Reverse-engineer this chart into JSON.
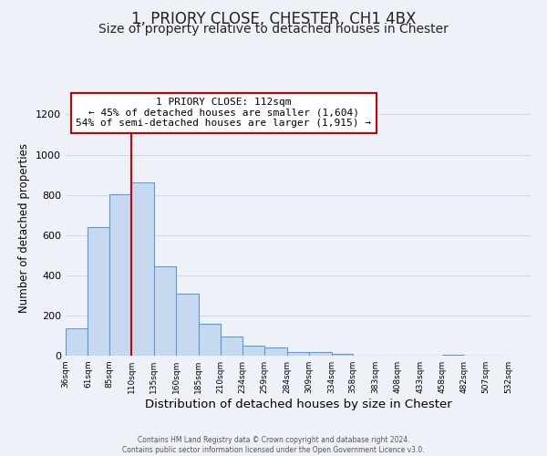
{
  "title": "1, PRIORY CLOSE, CHESTER, CH1 4BX",
  "subtitle": "Size of property relative to detached houses in Chester",
  "xlabel": "Distribution of detached houses by size in Chester",
  "ylabel": "Number of detached properties",
  "bar_values": [
    135,
    640,
    805,
    860,
    445,
    310,
    158,
    95,
    52,
    42,
    18,
    20,
    8,
    2,
    2,
    1,
    0,
    5,
    0,
    0
  ],
  "bin_labels": [
    "36sqm",
    "61sqm",
    "85sqm",
    "110sqm",
    "135sqm",
    "160sqm",
    "185sqm",
    "210sqm",
    "234sqm",
    "259sqm",
    "284sqm",
    "309sqm",
    "334sqm",
    "358sqm",
    "383sqm",
    "408sqm",
    "433sqm",
    "458sqm",
    "482sqm",
    "507sqm",
    "532sqm"
  ],
  "bin_edges": [
    36,
    61,
    85,
    110,
    135,
    160,
    185,
    210,
    234,
    259,
    284,
    309,
    334,
    358,
    383,
    408,
    433,
    458,
    482,
    507,
    532
  ],
  "bar_color": "#c6d9f0",
  "bar_edge_color": "#5b9bd5",
  "vline_x": 110,
  "vline_color": "#cc0000",
  "annotation_text": "1 PRIORY CLOSE: 112sqm\n← 45% of detached houses are smaller (1,604)\n54% of semi-detached houses are larger (1,915) →",
  "annotation_box_color": "#ffffff",
  "annotation_box_edge": "#cc0000",
  "ylim": [
    0,
    1270
  ],
  "yticks": [
    0,
    200,
    400,
    600,
    800,
    1000,
    1200
  ],
  "footer1": "Contains HM Land Registry data © Crown copyright and database right 2024.",
  "footer2": "Contains public sector information licensed under the Open Government Licence v3.0.",
  "bg_color": "#eef2f8",
  "grid_color": "#d0d8e8",
  "title_fontsize": 12,
  "subtitle_fontsize": 10,
  "xlabel_fontsize": 9.5,
  "ylabel_fontsize": 8.5,
  "ann_fontsize": 8.0
}
